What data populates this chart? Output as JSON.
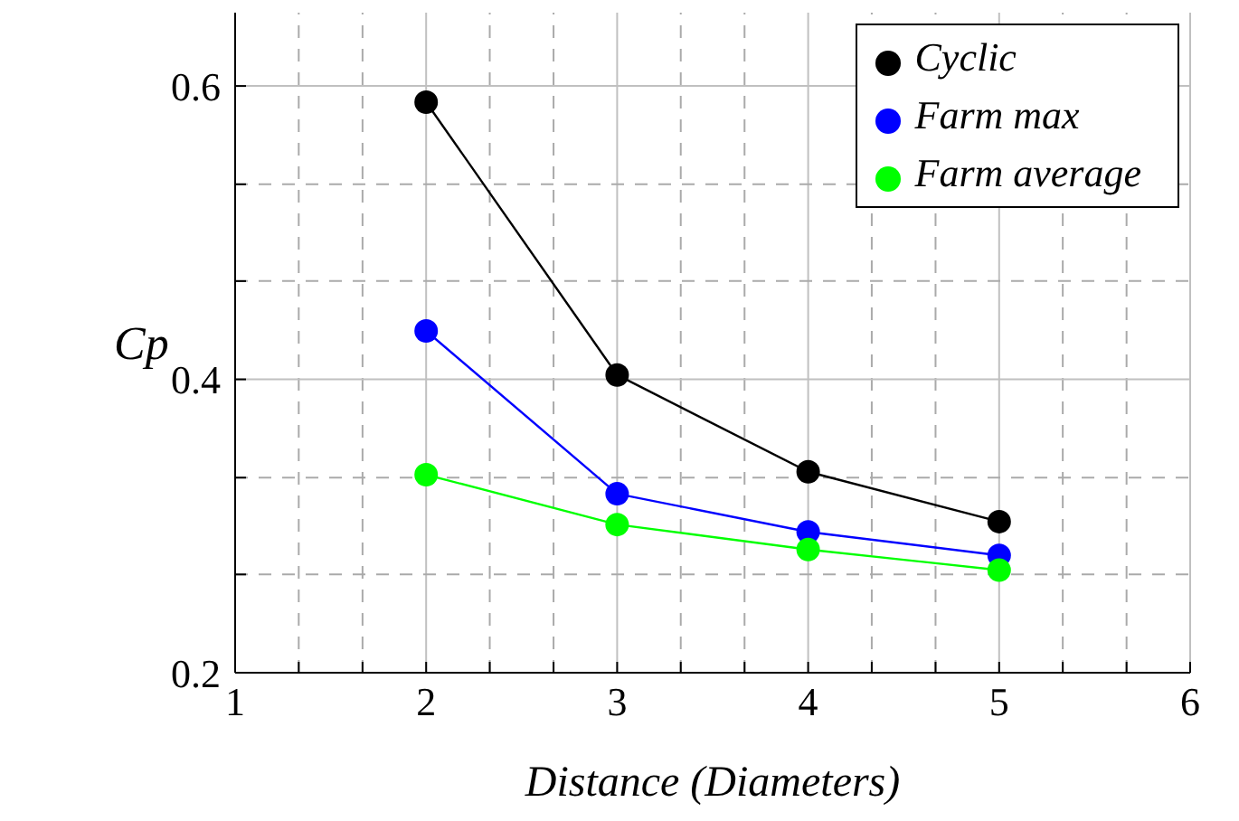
{
  "chart_data": {
    "type": "line",
    "xlabel": "Distance (Diameters)",
    "ylabel": "Cp",
    "x": [
      2,
      3,
      4,
      5
    ],
    "series": [
      {
        "name": "Cyclic",
        "color": "#000000",
        "values": [
          0.589,
          0.403,
          0.337,
          0.303
        ]
      },
      {
        "name": "Farm max",
        "color": "#0000ff",
        "values": [
          0.433,
          0.322,
          0.296,
          0.28
        ]
      },
      {
        "name": "Farm average",
        "color": "#00ff00",
        "values": [
          0.335,
          0.301,
          0.284,
          0.27
        ]
      }
    ],
    "xlim": [
      1,
      6
    ],
    "xticks": [
      1,
      {
        "value": 1.333,
        "label": null
      },
      {
        "value": 1.667,
        "label": null
      },
      2,
      {
        "value": 2.333,
        "label": null
      },
      {
        "value": 2.667,
        "label": null
      },
      3,
      {
        "value": 3.333,
        "label": null
      },
      {
        "value": 3.667,
        "label": null
      },
      4,
      {
        "value": 4.333,
        "label": null
      },
      {
        "value": 4.667,
        "label": null
      },
      5,
      {
        "value": 5.333,
        "label": null
      },
      {
        "value": 5.667,
        "label": null
      },
      6
    ],
    "ylim": [
      0.2,
      0.65
    ],
    "yticks": [
      {
        "value": 0.2,
        "label": "0.2"
      },
      {
        "value": 0.267,
        "label": null
      },
      {
        "value": 0.333,
        "label": null
      },
      {
        "value": 0.4,
        "label": "0.4"
      },
      {
        "value": 0.467,
        "label": null
      },
      {
        "value": 0.533,
        "label": null
      },
      {
        "value": 0.6,
        "label": "0.6"
      }
    ],
    "grid": true,
    "legend": "top right",
    "marker": "circle",
    "line_style": "solid"
  }
}
